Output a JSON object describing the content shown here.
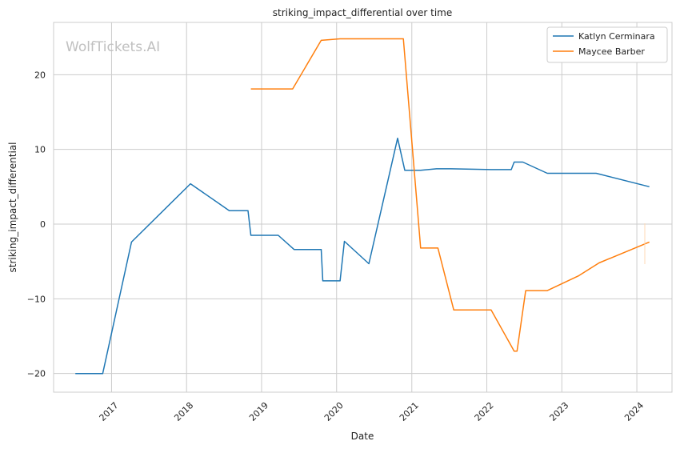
{
  "chart_data": {
    "type": "line",
    "title": "striking_impact_differential over time",
    "xlabel": "Date",
    "ylabel": "striking_impact_differential",
    "watermark": "WolfTickets.AI",
    "x_ticks": [
      "2017",
      "2018",
      "2019",
      "2020",
      "2021",
      "2022",
      "2023",
      "2024"
    ],
    "y_ticks": [
      -20,
      -10,
      0,
      10,
      20
    ],
    "xlim": [
      "2016-03-25",
      "2024-06-20"
    ],
    "ylim": [
      -22.5,
      27
    ],
    "grid": true,
    "legend_position": "top-right",
    "series": [
      {
        "name": "Katlyn Cerminara",
        "color": "#1f77b4",
        "points": [
          [
            "2016-07-09",
            -20.0
          ],
          [
            "2016-11-19",
            -20.0
          ],
          [
            "2017-04-08",
            -2.4
          ],
          [
            "2018-01-20",
            5.4
          ],
          [
            "2018-07-28",
            1.8
          ],
          [
            "2018-10-27",
            1.8
          ],
          [
            "2018-11-10",
            -1.5
          ],
          [
            "2019-03-23",
            -1.5
          ],
          [
            "2019-06-08",
            -3.4
          ],
          [
            "2019-10-18",
            -3.4
          ],
          [
            "2019-10-26",
            -7.6
          ],
          [
            "2020-01-18",
            -7.6
          ],
          [
            "2020-02-08",
            -2.3
          ],
          [
            "2020-06-06",
            -5.3
          ],
          [
            "2020-10-24",
            11.5
          ],
          [
            "2020-11-28",
            7.2
          ],
          [
            "2021-02-13",
            7.2
          ],
          [
            "2021-05-01",
            7.4
          ],
          [
            "2021-07-10",
            7.4
          ],
          [
            "2022-01-22",
            7.3
          ],
          [
            "2022-04-30",
            7.3
          ],
          [
            "2022-05-14",
            8.3
          ],
          [
            "2022-06-25",
            8.3
          ],
          [
            "2022-10-22",
            6.8
          ],
          [
            "2023-06-17",
            6.8
          ],
          [
            "2024-03-02",
            5.0
          ]
        ]
      },
      {
        "name": "Maycee Barber",
        "color": "#ff7f0e",
        "points": [
          [
            "2018-11-10",
            18.1
          ],
          [
            "2019-06-01",
            18.1
          ],
          [
            "2019-10-18",
            24.6
          ],
          [
            "2020-01-18",
            24.8
          ],
          [
            "2020-11-21",
            24.8
          ],
          [
            "2021-02-13",
            -3.2
          ],
          [
            "2021-05-08",
            -3.2
          ],
          [
            "2021-07-24",
            -11.5
          ],
          [
            "2022-01-22",
            -11.5
          ],
          [
            "2022-05-14",
            -17.0
          ],
          [
            "2022-05-28",
            -17.0
          ],
          [
            "2022-07-09",
            -8.9
          ],
          [
            "2022-10-22",
            -8.9
          ],
          [
            "2023-03-25",
            -6.9
          ],
          [
            "2023-07-01",
            -5.2
          ],
          [
            "2024-03-02",
            -2.4
          ]
        ]
      }
    ]
  }
}
